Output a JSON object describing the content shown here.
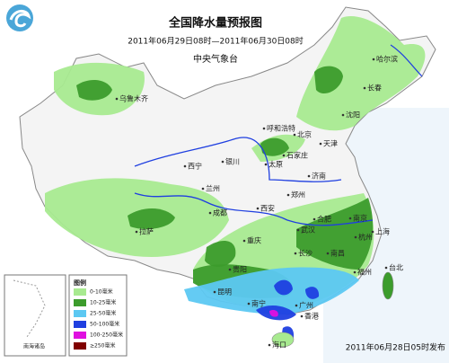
{
  "header": {
    "title": "全国降水量预报图",
    "subtitle": "2011年06月29日08时—2011年06月30日08时",
    "agency": "中央气象台"
  },
  "legend": {
    "title": "图例",
    "items": [
      {
        "label": "0-10毫米",
        "color": "#a8ea90"
      },
      {
        "label": "10-25毫米",
        "color": "#3c9c2c"
      },
      {
        "label": "25-50毫米",
        "color": "#5cc8f2"
      },
      {
        "label": "50-100毫米",
        "color": "#1f3fe0"
      },
      {
        "label": "100-250毫米",
        "color": "#e010e0"
      },
      {
        "label": "≥250毫米",
        "color": "#800000"
      }
    ]
  },
  "inset": {
    "label": "南海诸岛"
  },
  "cities": [
    "乌鲁木齐",
    "哈尔滨",
    "长春",
    "沈阳",
    "呼和浩特",
    "北京",
    "天津",
    "银川",
    "石家庄",
    "太原",
    "济南",
    "西宁",
    "兰州",
    "郑州",
    "西安",
    "合肥",
    "南京",
    "上海",
    "成都",
    "武汉",
    "杭州",
    "拉萨",
    "重庆",
    "长沙",
    "南昌",
    "福州",
    "贵阳",
    "台北",
    "昆明",
    "南宁",
    "广州",
    "香港",
    "海口"
  ],
  "footer": {
    "issued": "2011年06月28日05时发布"
  }
}
